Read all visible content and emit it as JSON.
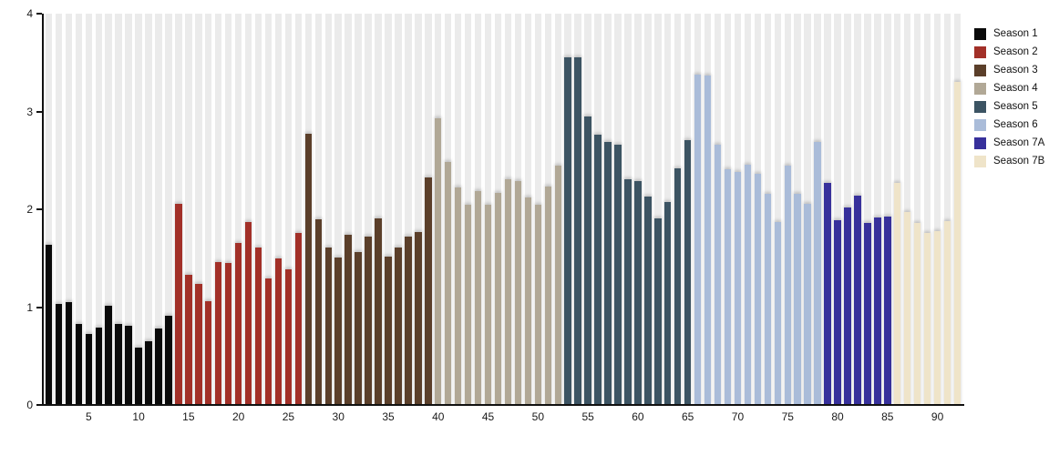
{
  "chart_data": {
    "type": "bar",
    "title": "",
    "xlabel": "",
    "ylabel": "",
    "ylim": [
      0,
      4
    ],
    "yticks": [
      0,
      1,
      2,
      3,
      4
    ],
    "xticks": [
      5,
      10,
      15,
      20,
      25,
      30,
      35,
      40,
      45,
      50,
      55,
      60,
      65,
      70,
      75,
      80,
      85,
      90
    ],
    "x_unit": "episode-number",
    "total_episodes": 92,
    "grid": "vertical-background-bands",
    "band_color": "#ebebeb",
    "background_color": "#ffffff",
    "axis_color": "#111111",
    "legend_position": "outside-top-right",
    "series": [
      {
        "name": "Season 1",
        "color": "#0a0a0a",
        "start_episode": 1,
        "values": [
          1.64,
          1.03,
          1.05,
          0.83,
          0.73,
          0.79,
          1.01,
          0.83,
          0.81,
          0.59,
          0.65,
          0.78,
          0.91
        ]
      },
      {
        "name": "Season 2",
        "color": "#a23028",
        "start_episode": 14,
        "values": [
          2.06,
          1.33,
          1.24,
          1.06,
          1.46,
          1.45,
          1.66,
          1.87,
          1.61,
          1.29,
          1.5,
          1.39,
          1.76
        ]
      },
      {
        "name": "Season 3",
        "color": "#5b3f2a",
        "start_episode": 27,
        "values": [
          2.77,
          1.9,
          1.61,
          1.51,
          1.74,
          1.56,
          1.72,
          1.91,
          1.52,
          1.61,
          1.72,
          1.77,
          2.33
        ]
      },
      {
        "name": "Season 4",
        "color": "#b1a896",
        "start_episode": 40,
        "values": [
          2.93,
          2.48,
          2.22,
          2.05,
          2.19,
          2.05,
          2.17,
          2.31,
          2.29,
          2.12,
          2.05,
          2.23,
          2.45
        ]
      },
      {
        "name": "Season 5",
        "color": "#3c5463",
        "start_episode": 53,
        "values": [
          3.55,
          3.55,
          2.95,
          2.76,
          2.69,
          2.66,
          2.31,
          2.29,
          2.13,
          1.91,
          2.07,
          2.42,
          2.71
        ]
      },
      {
        "name": "Season 6",
        "color": "#aabcd9",
        "start_episode": 66,
        "values": [
          3.38,
          3.37,
          2.66,
          2.41,
          2.38,
          2.46,
          2.36,
          2.16,
          1.87,
          2.45,
          2.16,
          2.06,
          2.69
        ]
      },
      {
        "name": "Season 7A",
        "color": "#37309b",
        "start_episode": 79,
        "values": [
          2.27,
          1.89,
          2.02,
          2.14,
          1.86,
          1.92,
          1.93
        ]
      },
      {
        "name": "Season 7B",
        "color": "#efe4c9",
        "start_episode": 86,
        "values": [
          2.27,
          1.97,
          1.86,
          1.76,
          1.78,
          1.88,
          3.3
        ]
      }
    ]
  }
}
